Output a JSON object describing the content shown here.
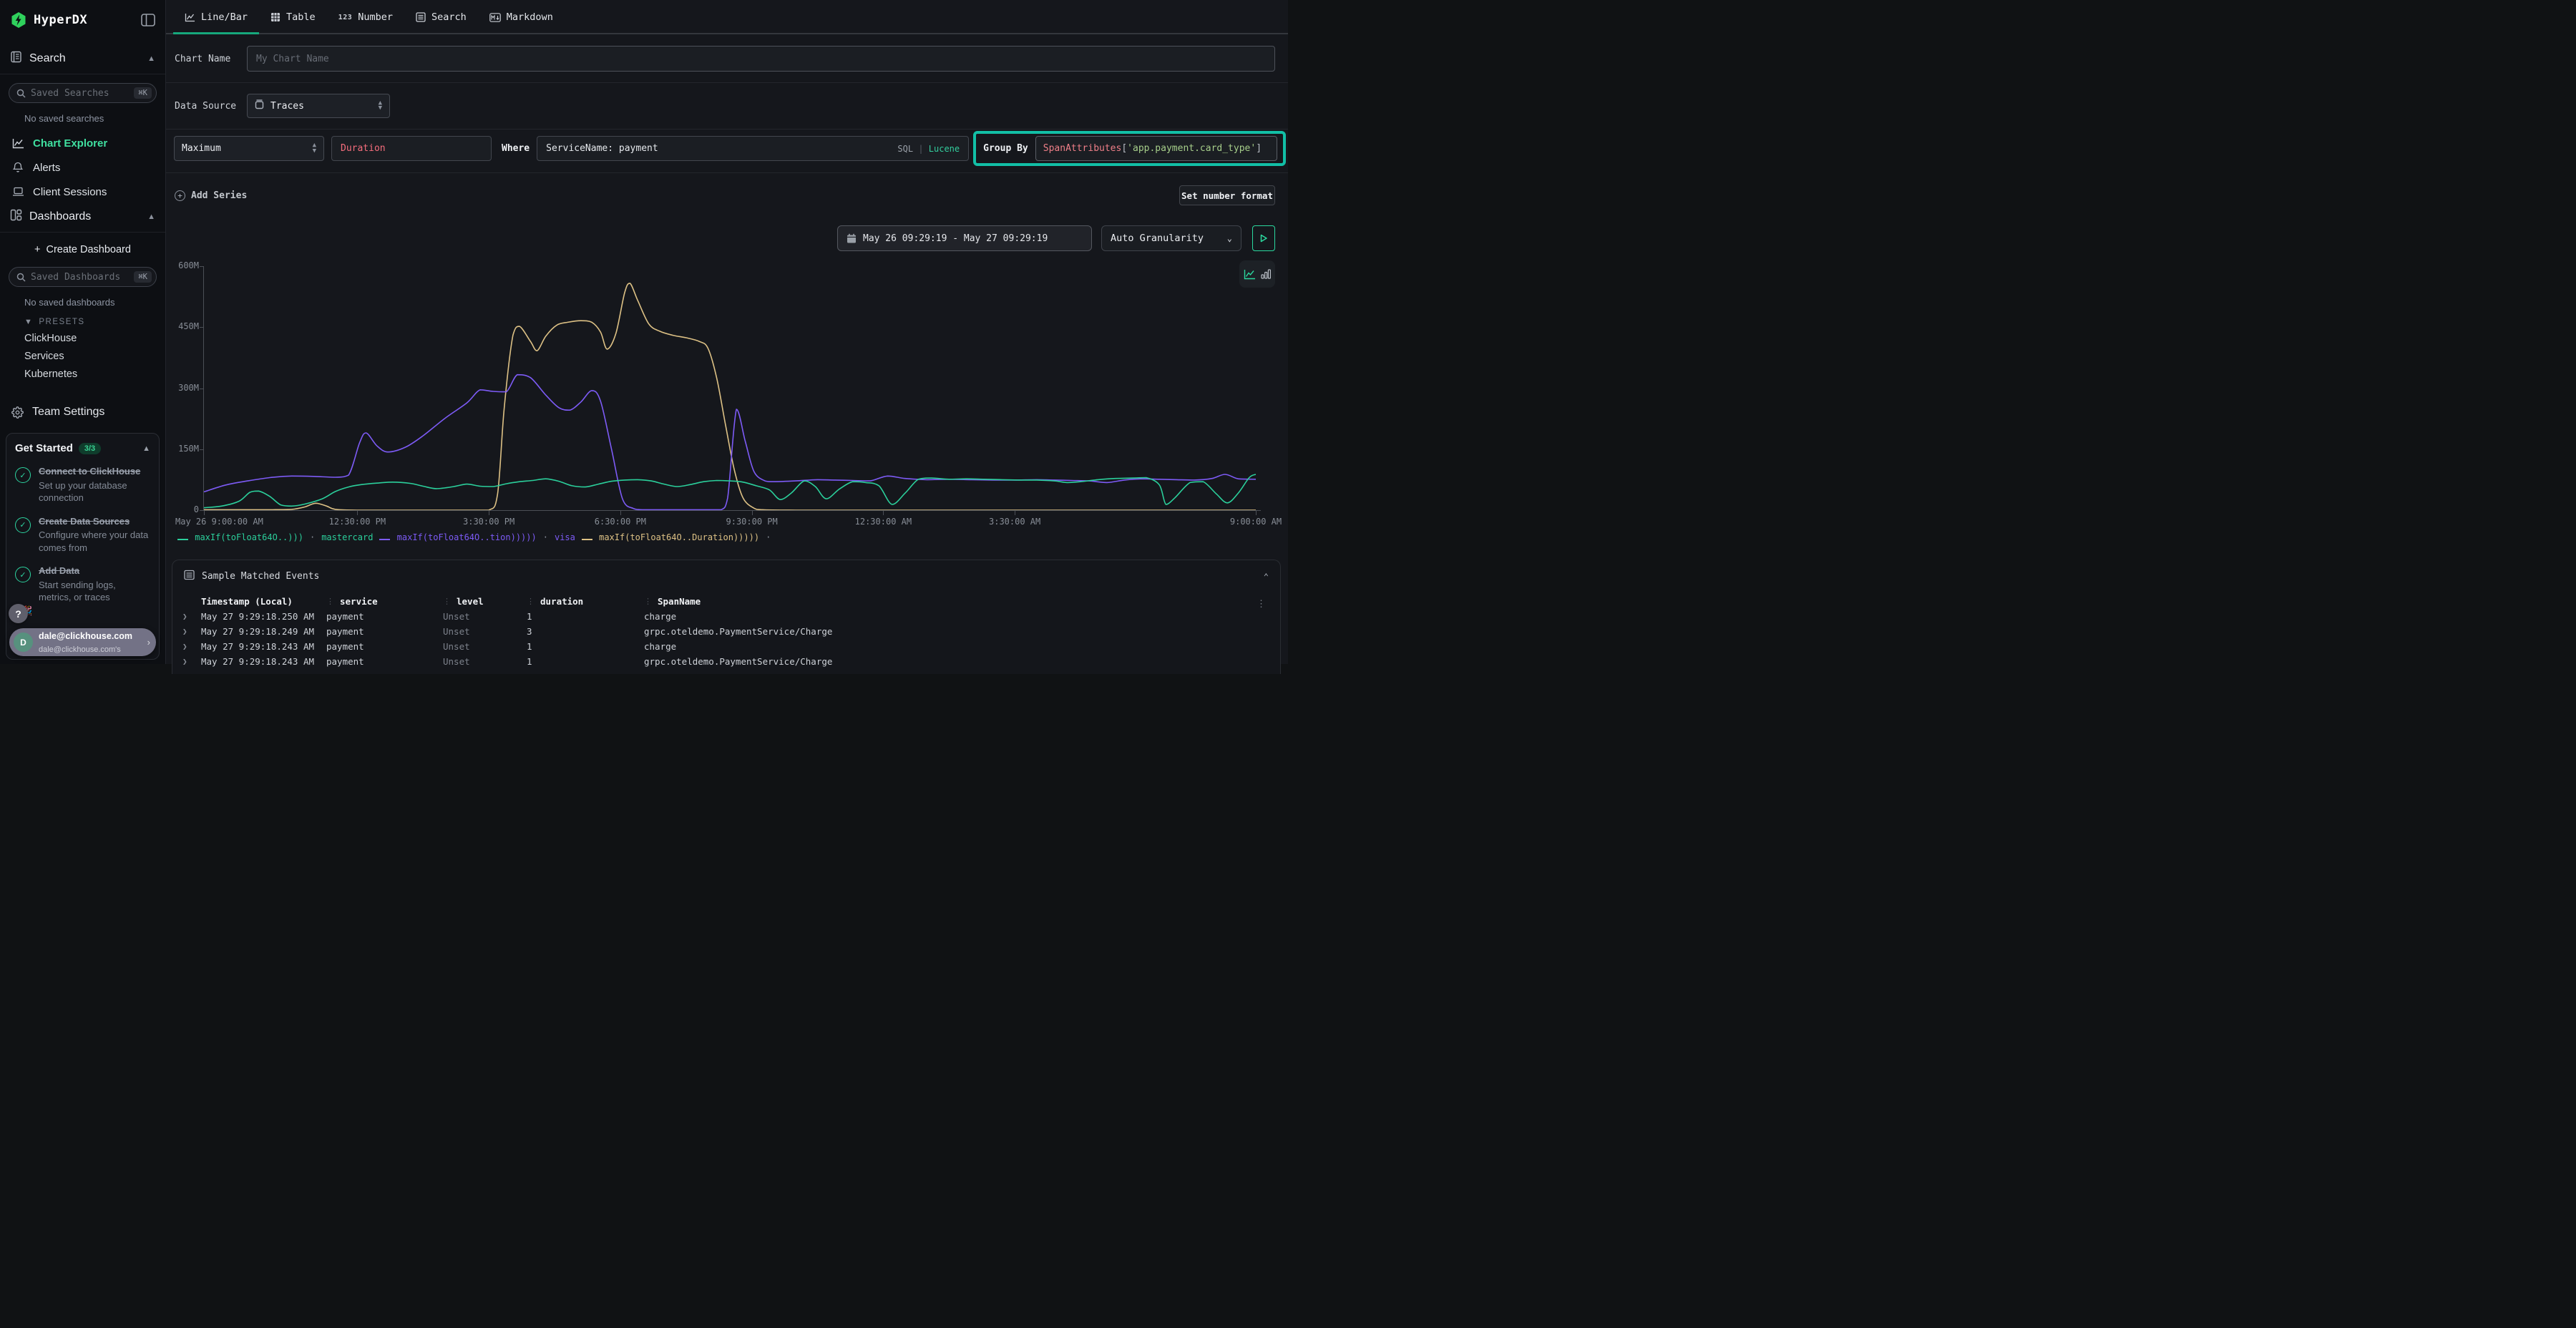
{
  "app": {
    "name": "HyperDX"
  },
  "colors": {
    "accent_green": "#20c997",
    "highlight_teal": "#12bfa6",
    "active_tab_underline": "#16a87c",
    "series_green": "#2bcf9b",
    "series_purple": "#7d5bf6",
    "series_yellow": "#ddc185"
  },
  "sidebar": {
    "search_section_label": "Search",
    "saved_searches_placeholder": "Saved Searches",
    "shortcut": "⌘K",
    "no_saved_searches": "No saved searches",
    "nav": [
      {
        "label": "Chart Explorer",
        "icon": "chart-line-icon",
        "active": true
      },
      {
        "label": "Alerts",
        "icon": "bell-icon",
        "active": false
      },
      {
        "label": "Client Sessions",
        "icon": "laptop-icon",
        "active": false
      }
    ],
    "dashboards_section_label": "Dashboards",
    "create_dashboard_label": "Create Dashboard",
    "saved_dashboards_placeholder": "Saved Dashboards",
    "no_saved_dashboards": "No saved dashboards",
    "presets_label": "PRESETS",
    "presets": [
      "ClickHouse",
      "Services",
      "Kubernetes"
    ],
    "team_settings_label": "Team Settings",
    "get_started": {
      "title": "Get Started",
      "badge": "3/3",
      "items": [
        {
          "title": "Connect to ClickHouse",
          "desc": "Set up your database connection",
          "done": true
        },
        {
          "title": "Create Data Sources",
          "desc": "Configure where your data comes from",
          "done": true
        },
        {
          "title": "Add Data",
          "desc": "Start sending logs, metrics, or traces",
          "done": true
        }
      ],
      "hidden_item_emoji": "🎉"
    },
    "help_label": "?",
    "user": {
      "initial": "D",
      "name": "dale@clickhouse.com",
      "subtitle": "dale@clickhouse.com's"
    }
  },
  "tabs": [
    {
      "label": "Line/Bar",
      "icon": "line-chart-icon",
      "active": true
    },
    {
      "label": "Table",
      "icon": "table-icon",
      "active": false
    },
    {
      "label": "Number",
      "icon": "number-123-icon",
      "active": false
    },
    {
      "label": "Search",
      "icon": "search-list-icon",
      "active": false
    },
    {
      "label": "Markdown",
      "icon": "markdown-icon",
      "active": false
    }
  ],
  "form": {
    "chart_name_label": "Chart Name",
    "chart_name_placeholder": "My Chart Name",
    "data_source_label": "Data Source",
    "data_source_value": "Traces",
    "aggregation_value": "Maximum",
    "field_value": "Duration",
    "where_label": "Where",
    "where_value": "ServiceName: payment",
    "language_sql": "SQL",
    "language_divider": "|",
    "language_lucene": "Lucene",
    "group_by_label": "Group By",
    "group_by_fn": "SpanAttributes",
    "group_by_open": "[",
    "group_by_key": "'app.payment.card_type'",
    "group_by_close": "]",
    "add_series_label": "Add Series",
    "set_number_format_label": "Set number format",
    "date_range_value": "May 26 09:29:19 - May 27 09:29:19",
    "granularity_value": "Auto Granularity"
  },
  "chart_data": {
    "type": "line",
    "title": "",
    "xlabel": "",
    "ylabel": "",
    "x_unit": "hours since May 26 9:00:00 AM",
    "x_range_hours": [
      0,
      24
    ],
    "ylim": [
      0,
      600000000
    ],
    "grid": false,
    "legend_position": "bottom-left",
    "y_ticks": [
      "0",
      "150M",
      "300M",
      "450M",
      "600M"
    ],
    "x_ticks": [
      {
        "h": 0,
        "label": "May 26 9:00:00 AM"
      },
      {
        "h": 3.5,
        "label": "12:30:00 PM"
      },
      {
        "h": 6.5,
        "label": "3:30:00 PM"
      },
      {
        "h": 9.5,
        "label": "6:30:00 PM"
      },
      {
        "h": 12.5,
        "label": "9:30:00 PM"
      },
      {
        "h": 15.5,
        "label": "12:30:00 AM"
      },
      {
        "h": 18.5,
        "label": "3:30:00 AM"
      },
      {
        "h": 24,
        "label": "9:00:00 AM"
      }
    ],
    "legend_separator": "·",
    "series": [
      {
        "name": "maxIf(toFloat64O..Duration)))))",
        "group": "",
        "color": "#ddc185",
        "points_hours_vs_millions": [
          [
            0,
            1
          ],
          [
            0.5,
            1
          ],
          [
            1,
            1
          ],
          [
            1.5,
            1
          ],
          [
            2,
            2
          ],
          [
            2.3,
            8
          ],
          [
            2.55,
            17
          ],
          [
            2.8,
            10
          ],
          [
            3,
            2
          ],
          [
            3.5,
            0
          ],
          [
            4,
            0
          ],
          [
            4.5,
            0
          ],
          [
            5,
            0
          ],
          [
            5.5,
            0
          ],
          [
            6,
            0
          ],
          [
            6.5,
            0
          ],
          [
            6.7,
            40
          ],
          [
            6.85,
            250
          ],
          [
            7.05,
            430
          ],
          [
            7.2,
            452
          ],
          [
            7.45,
            415
          ],
          [
            7.6,
            392
          ],
          [
            7.8,
            428
          ],
          [
            8.05,
            455
          ],
          [
            8.3,
            462
          ],
          [
            8.6,
            466
          ],
          [
            8.85,
            462
          ],
          [
            9.05,
            438
          ],
          [
            9.2,
            396
          ],
          [
            9.4,
            435
          ],
          [
            9.6,
            535
          ],
          [
            9.72,
            558
          ],
          [
            9.9,
            515
          ],
          [
            10.15,
            458
          ],
          [
            10.4,
            440
          ],
          [
            10.7,
            430
          ],
          [
            11,
            424
          ],
          [
            11.3,
            415
          ],
          [
            11.5,
            398
          ],
          [
            11.7,
            325
          ],
          [
            11.9,
            210
          ],
          [
            12.1,
            100
          ],
          [
            12.3,
            30
          ],
          [
            12.55,
            5
          ],
          [
            12.75,
            1
          ],
          [
            13.5,
            0
          ],
          [
            14.5,
            0
          ],
          [
            15.5,
            0
          ],
          [
            16.5,
            0
          ],
          [
            17.5,
            0
          ],
          [
            18.5,
            0
          ],
          [
            19.5,
            0
          ],
          [
            20.5,
            0
          ],
          [
            21.5,
            0
          ],
          [
            22.5,
            0
          ],
          [
            23.5,
            0
          ],
          [
            24,
            0
          ]
        ]
      },
      {
        "name": "maxIf(toFloat64O..tion)))))",
        "group": "visa",
        "color": "#7d5bf6",
        "points_hours_vs_millions": [
          [
            0,
            45
          ],
          [
            0.5,
            62
          ],
          [
            1,
            72
          ],
          [
            1.5,
            80
          ],
          [
            2,
            84
          ],
          [
            2.5,
            83
          ],
          [
            3,
            81
          ],
          [
            3.3,
            86
          ],
          [
            3.55,
            165
          ],
          [
            3.7,
            190
          ],
          [
            3.95,
            158
          ],
          [
            4.2,
            143
          ],
          [
            4.6,
            155
          ],
          [
            5,
            183
          ],
          [
            5.5,
            226
          ],
          [
            6,
            264
          ],
          [
            6.3,
            296
          ],
          [
            6.6,
            292
          ],
          [
            6.9,
            291
          ],
          [
            7.15,
            333
          ],
          [
            7.45,
            326
          ],
          [
            7.8,
            283
          ],
          [
            8.1,
            252
          ],
          [
            8.35,
            246
          ],
          [
            8.6,
            266
          ],
          [
            8.85,
            294
          ],
          [
            9.05,
            268
          ],
          [
            9.3,
            150
          ],
          [
            9.55,
            28
          ],
          [
            9.8,
            4
          ],
          [
            10,
            1
          ],
          [
            10.5,
            1
          ],
          [
            11,
            1
          ],
          [
            11.5,
            1
          ],
          [
            11.8,
            1
          ],
          [
            11.95,
            30
          ],
          [
            12.15,
            248
          ],
          [
            12.35,
            170
          ],
          [
            12.55,
            95
          ],
          [
            12.8,
            72
          ],
          [
            13,
            70
          ],
          [
            13.5,
            72
          ],
          [
            14,
            75
          ],
          [
            14.4,
            74
          ],
          [
            14.8,
            73
          ],
          [
            15.2,
            72
          ],
          [
            15.6,
            84
          ],
          [
            16,
            78
          ],
          [
            16.5,
            75
          ],
          [
            17,
            76
          ],
          [
            17.5,
            75
          ],
          [
            18,
            74
          ],
          [
            18.5,
            74
          ],
          [
            19,
            75
          ],
          [
            19.4,
            74
          ],
          [
            19.8,
            73
          ],
          [
            20.2,
            72
          ],
          [
            20.6,
            68
          ],
          [
            21,
            74
          ],
          [
            21.4,
            77
          ],
          [
            21.8,
            76
          ],
          [
            22.2,
            75
          ],
          [
            22.6,
            74
          ],
          [
            23,
            78
          ],
          [
            23.3,
            88
          ],
          [
            23.6,
            77
          ],
          [
            24,
            76
          ]
        ]
      },
      {
        "name": "maxIf(toFloat64O..)))",
        "group": "mastercard",
        "color": "#2bcf9b",
        "points_hours_vs_millions": [
          [
            0,
            6
          ],
          [
            0.4,
            10
          ],
          [
            0.8,
            22
          ],
          [
            1.05,
            44
          ],
          [
            1.25,
            47
          ],
          [
            1.5,
            34
          ],
          [
            1.75,
            13
          ],
          [
            2,
            10
          ],
          [
            2.3,
            15
          ],
          [
            2.7,
            28
          ],
          [
            3,
            46
          ],
          [
            3.3,
            57
          ],
          [
            3.6,
            63
          ],
          [
            4,
            67
          ],
          [
            4.3,
            69
          ],
          [
            4.7,
            66
          ],
          [
            5,
            59
          ],
          [
            5.3,
            53
          ],
          [
            5.7,
            58
          ],
          [
            6,
            64
          ],
          [
            6.3,
            59
          ],
          [
            6.6,
            58
          ],
          [
            6.9,
            65
          ],
          [
            7.2,
            70
          ],
          [
            7.5,
            73
          ],
          [
            7.8,
            77
          ],
          [
            8.1,
            71
          ],
          [
            8.4,
            60
          ],
          [
            8.7,
            57
          ],
          [
            9,
            64
          ],
          [
            9.3,
            71
          ],
          [
            9.6,
            74
          ],
          [
            9.9,
            75
          ],
          [
            10.2,
            72
          ],
          [
            10.5,
            64
          ],
          [
            10.8,
            58
          ],
          [
            11.1,
            63
          ],
          [
            11.4,
            70
          ],
          [
            11.7,
            73
          ],
          [
            12,
            72
          ],
          [
            12.3,
            69
          ],
          [
            12.6,
            60
          ],
          [
            12.9,
            50
          ],
          [
            13.15,
            26
          ],
          [
            13.4,
            42
          ],
          [
            13.7,
            72
          ],
          [
            13.95,
            58
          ],
          [
            14.2,
            28
          ],
          [
            14.5,
            52
          ],
          [
            14.8,
            70
          ],
          [
            15.1,
            68
          ],
          [
            15.4,
            60
          ],
          [
            15.7,
            14
          ],
          [
            16,
            42
          ],
          [
            16.3,
            76
          ],
          [
            16.6,
            79
          ],
          [
            17,
            76
          ],
          [
            17.4,
            77
          ],
          [
            17.8,
            76
          ],
          [
            18.2,
            75
          ],
          [
            18.6,
            74
          ],
          [
            19,
            74
          ],
          [
            19.4,
            72
          ],
          [
            19.7,
            68
          ],
          [
            20,
            70
          ],
          [
            20.4,
            75
          ],
          [
            20.8,
            78
          ],
          [
            21.2,
            79
          ],
          [
            21.5,
            80
          ],
          [
            21.8,
            62
          ],
          [
            21.95,
            14
          ],
          [
            22.15,
            30
          ],
          [
            22.5,
            68
          ],
          [
            22.8,
            70
          ],
          [
            23.1,
            40
          ],
          [
            23.35,
            18
          ],
          [
            23.6,
            42
          ],
          [
            23.85,
            80
          ],
          [
            24,
            88
          ]
        ]
      }
    ],
    "legend_order": [
      2,
      1,
      0
    ]
  },
  "events_panel": {
    "title": "Sample Matched Events",
    "columns": [
      "Timestamp (Local)",
      "service",
      "level",
      "duration",
      "SpanName"
    ],
    "rows": [
      [
        "May 27 9:29:18.250 AM",
        "payment",
        "Unset",
        "1",
        "charge"
      ],
      [
        "May 27 9:29:18.249 AM",
        "payment",
        "Unset",
        "3",
        "grpc.oteldemo.PaymentService/Charge"
      ],
      [
        "May 27 9:29:18.243 AM",
        "payment",
        "Unset",
        "1",
        "charge"
      ],
      [
        "May 27 9:29:18.243 AM",
        "payment",
        "Unset",
        "1",
        "grpc.oteldemo.PaymentService/Charge"
      ]
    ]
  }
}
